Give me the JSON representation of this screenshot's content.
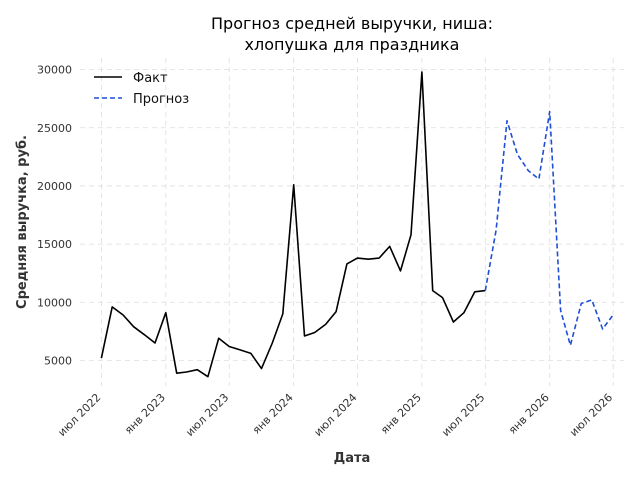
{
  "chart_data": {
    "type": "line",
    "title_line1": "Прогноз средней выручки, ниша:",
    "title_line2": "хлопушка для праздника",
    "xlabel": "Дата",
    "ylabel": "Средняя выручка, руб.",
    "ylim": [
      2800,
      31000
    ],
    "xlim": [
      "2022-05-01",
      "2026-08-01"
    ],
    "y_ticks": [
      5000,
      10000,
      15000,
      20000,
      25000,
      30000
    ],
    "x_ticks": [
      {
        "date": "2022-07-01",
        "label": "июл 2022"
      },
      {
        "date": "2023-01-01",
        "label": "янв 2023"
      },
      {
        "date": "2023-07-01",
        "label": "июл 2023"
      },
      {
        "date": "2024-01-01",
        "label": "янв 2024"
      },
      {
        "date": "2024-07-01",
        "label": "июл 2024"
      },
      {
        "date": "2025-01-01",
        "label": "янв 2025"
      },
      {
        "date": "2025-07-01",
        "label": "июл 2025"
      },
      {
        "date": "2026-01-01",
        "label": "янв 2026"
      },
      {
        "date": "2026-07-01",
        "label": "июл 2026"
      }
    ],
    "grid": true,
    "legend_position": "top-left",
    "series": [
      {
        "name": "Факт",
        "color": "#000000",
        "style": "solid",
        "points": [
          [
            "2022-07-01",
            5200
          ],
          [
            "2022-08-01",
            9600
          ],
          [
            "2022-09-01",
            8900
          ],
          [
            "2022-10-01",
            7900
          ],
          [
            "2022-11-01",
            7200
          ],
          [
            "2022-12-01",
            6500
          ],
          [
            "2023-01-01",
            9100
          ],
          [
            "2023-02-01",
            3900
          ],
          [
            "2023-03-01",
            4000
          ],
          [
            "2023-04-01",
            4200
          ],
          [
            "2023-05-01",
            3600
          ],
          [
            "2023-06-01",
            6900
          ],
          [
            "2023-07-01",
            6200
          ],
          [
            "2023-08-01",
            5900
          ],
          [
            "2023-09-01",
            5600
          ],
          [
            "2023-10-01",
            4300
          ],
          [
            "2023-11-01",
            6500
          ],
          [
            "2023-12-01",
            9000
          ],
          [
            "2024-01-01",
            20100
          ],
          [
            "2024-02-01",
            7100
          ],
          [
            "2024-03-01",
            7400
          ],
          [
            "2024-04-01",
            8100
          ],
          [
            "2024-05-01",
            9200
          ],
          [
            "2024-06-01",
            13300
          ],
          [
            "2024-07-01",
            13800
          ],
          [
            "2024-08-01",
            13700
          ],
          [
            "2024-09-01",
            13800
          ],
          [
            "2024-10-01",
            14800
          ],
          [
            "2024-11-01",
            12700
          ],
          [
            "2024-12-01",
            15800
          ],
          [
            "2025-01-01",
            29800
          ],
          [
            "2025-02-01",
            11000
          ],
          [
            "2025-03-01",
            10400
          ],
          [
            "2025-04-01",
            8300
          ],
          [
            "2025-05-01",
            9100
          ],
          [
            "2025-06-01",
            10900
          ],
          [
            "2025-07-01",
            11000
          ]
        ]
      },
      {
        "name": "Прогноз",
        "color": "#1f4fd6",
        "style": "dashed",
        "points": [
          [
            "2025-07-01",
            11000
          ],
          [
            "2025-08-01",
            16200
          ],
          [
            "2025-09-01",
            25600
          ],
          [
            "2025-10-01",
            22700
          ],
          [
            "2025-11-01",
            21300
          ],
          [
            "2025-12-01",
            20600
          ],
          [
            "2026-01-01",
            26400
          ],
          [
            "2026-02-01",
            9300
          ],
          [
            "2026-03-01",
            6300
          ],
          [
            "2026-04-01",
            9900
          ],
          [
            "2026-05-01",
            10200
          ],
          [
            "2026-06-01",
            7700
          ],
          [
            "2026-07-01",
            8900
          ]
        ]
      }
    ]
  }
}
